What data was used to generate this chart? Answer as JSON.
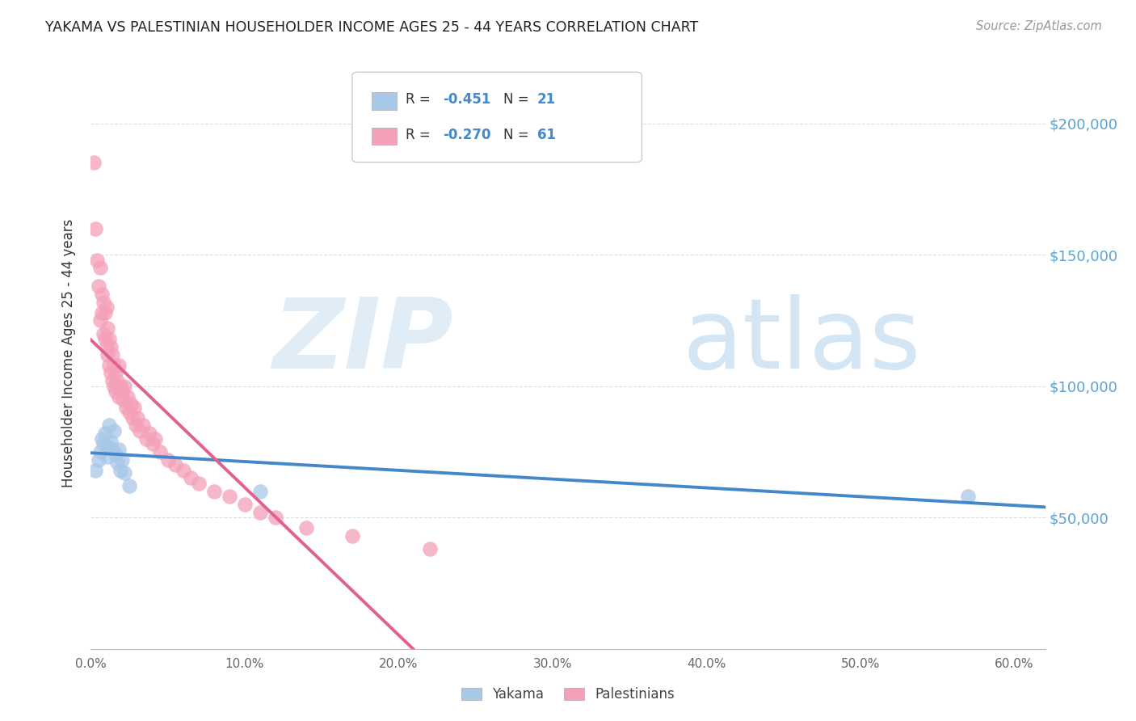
{
  "title": "YAKAMA VS PALESTINIAN HOUSEHOLDER INCOME AGES 25 - 44 YEARS CORRELATION CHART",
  "source": "Source: ZipAtlas.com",
  "ylabel": "Householder Income Ages 25 - 44 years",
  "ytick_values": [
    50000,
    100000,
    150000,
    200000
  ],
  "ytick_labels": [
    "$50,000",
    "$100,000",
    "$150,000",
    "$200,000"
  ],
  "ylim": [
    0,
    225000
  ],
  "xlim": [
    0.0,
    0.62
  ],
  "watermark_zip": "ZIP",
  "watermark_atlas": "atlas",
  "legend_blue_r": "-0.451",
  "legend_blue_n": "21",
  "legend_pink_r": "-0.270",
  "legend_pink_n": "61",
  "blue_color": "#a8c8e8",
  "pink_color": "#f4a0b8",
  "blue_line_color": "#4488cc",
  "pink_line_color": "#e06090",
  "background_color": "#ffffff",
  "grid_color": "#dddddd",
  "title_color": "#222222",
  "legend_text_color": "#4488cc",
  "yakama_x": [
    0.003,
    0.005,
    0.006,
    0.007,
    0.008,
    0.009,
    0.01,
    0.011,
    0.012,
    0.013,
    0.014,
    0.015,
    0.016,
    0.017,
    0.018,
    0.019,
    0.02,
    0.022,
    0.025,
    0.11,
    0.57
  ],
  "yakama_y": [
    68000,
    72000,
    75000,
    80000,
    78000,
    82000,
    77000,
    73000,
    85000,
    79000,
    76000,
    83000,
    74000,
    71000,
    76000,
    68000,
    72000,
    67000,
    62000,
    60000,
    58000
  ],
  "palestinian_x": [
    0.002,
    0.003,
    0.004,
    0.005,
    0.006,
    0.006,
    0.007,
    0.007,
    0.008,
    0.008,
    0.009,
    0.009,
    0.01,
    0.01,
    0.011,
    0.011,
    0.012,
    0.012,
    0.013,
    0.013,
    0.014,
    0.014,
    0.015,
    0.015,
    0.016,
    0.016,
    0.017,
    0.018,
    0.018,
    0.019,
    0.02,
    0.021,
    0.022,
    0.023,
    0.024,
    0.025,
    0.026,
    0.027,
    0.028,
    0.029,
    0.03,
    0.032,
    0.034,
    0.036,
    0.038,
    0.04,
    0.042,
    0.045,
    0.05,
    0.055,
    0.06,
    0.065,
    0.07,
    0.08,
    0.09,
    0.1,
    0.11,
    0.12,
    0.14,
    0.17,
    0.22
  ],
  "palestinian_y": [
    185000,
    160000,
    148000,
    138000,
    145000,
    125000,
    135000,
    128000,
    132000,
    120000,
    128000,
    118000,
    130000,
    115000,
    122000,
    112000,
    118000,
    108000,
    115000,
    105000,
    112000,
    102000,
    108000,
    100000,
    105000,
    98000,
    102000,
    108000,
    96000,
    100000,
    98000,
    95000,
    100000,
    92000,
    96000,
    90000,
    93000,
    88000,
    92000,
    85000,
    88000,
    83000,
    85000,
    80000,
    82000,
    78000,
    80000,
    75000,
    72000,
    70000,
    68000,
    65000,
    63000,
    60000,
    58000,
    55000,
    52000,
    50000,
    46000,
    43000,
    38000
  ]
}
